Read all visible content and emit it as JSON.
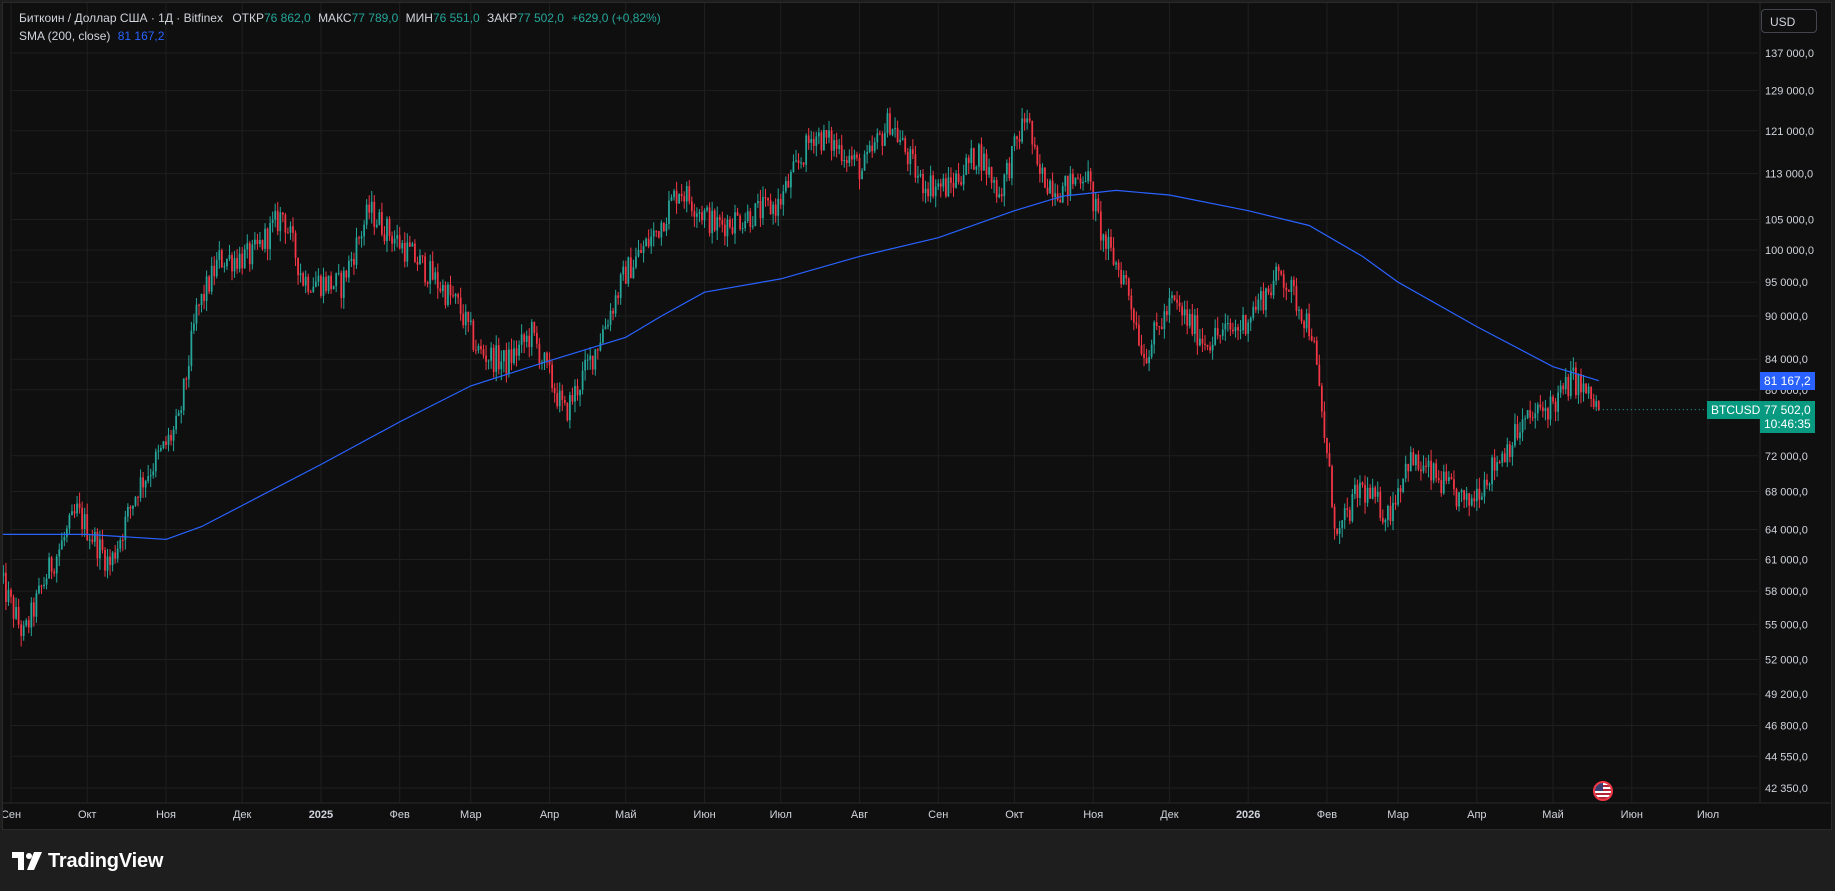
{
  "legend": {
    "symbol": "Биткоин / Доллар США · 1Д · Bitfinex",
    "open_label": "ОТКР",
    "open": "76 862,0",
    "high_label": "МАКС",
    "high": "77 789,0",
    "low_label": "МИН",
    "low": "76 551,0",
    "close_label": "ЗАКР",
    "close": "77 502,0",
    "change": "+629,0 (+0,82%)",
    "sma_label": "SMA (200, close)",
    "sma_value": "81 167,2"
  },
  "currency_button": "USD",
  "sma_tag": "81 167,2",
  "price_tag": {
    "symbol": "BTCUSD",
    "price": "77 502,0",
    "countdown": "10:46:35"
  },
  "branding": {
    "logo_text": "TradingView"
  },
  "colors": {
    "background": "#0f0f0f",
    "up": "#26a69a",
    "down": "#f23645",
    "sma": "#2962ff",
    "grid": "#1f1f1f"
  },
  "chart_data": {
    "type": "candlestick",
    "price_scale": "log",
    "y_ticks": [
      {
        "value": 137000,
        "label": "137 000,0"
      },
      {
        "value": 129000,
        "label": "129 000,0"
      },
      {
        "value": 121000,
        "label": "121 000,0"
      },
      {
        "value": 113000,
        "label": "113 000,0"
      },
      {
        "value": 105000,
        "label": "105 000,0"
      },
      {
        "value": 100000,
        "label": "100 000,0"
      },
      {
        "value": 95000,
        "label": "95 000,0"
      },
      {
        "value": 90000,
        "label": "90 000,0"
      },
      {
        "value": 84000,
        "label": "84 000,0"
      },
      {
        "value": 80000,
        "label": "80 000,0"
      },
      {
        "value": 72000,
        "label": "72 000,0"
      },
      {
        "value": 68000,
        "label": "68 000,0"
      },
      {
        "value": 64000,
        "label": "64 000,0"
      },
      {
        "value": 61000,
        "label": "61 000,0"
      },
      {
        "value": 58000,
        "label": "58 000,0"
      },
      {
        "value": 55000,
        "label": "55 000,0"
      },
      {
        "value": 52000,
        "label": "52 000,0"
      },
      {
        "value": 49200,
        "label": "49 200,0"
      },
      {
        "value": 46800,
        "label": "46 800,0"
      },
      {
        "value": 44550,
        "label": "44 550,0"
      },
      {
        "value": 42350,
        "label": "42 350,0"
      }
    ],
    "x_ticks": [
      {
        "label": "Сен",
        "date": "2024-09-01",
        "bold": false
      },
      {
        "label": "Окт",
        "date": "2024-10-01",
        "bold": false
      },
      {
        "label": "Ноя",
        "date": "2024-11-01",
        "bold": false
      },
      {
        "label": "Дек",
        "date": "2024-12-01",
        "bold": false
      },
      {
        "label": "2025",
        "date": "2025-01-01",
        "bold": true
      },
      {
        "label": "Фев",
        "date": "2025-02-01",
        "bold": false
      },
      {
        "label": "Мар",
        "date": "2025-03-01",
        "bold": false
      },
      {
        "label": "Апр",
        "date": "2025-04-01",
        "bold": false
      },
      {
        "label": "Май",
        "date": "2025-05-01",
        "bold": false
      },
      {
        "label": "Июн",
        "date": "2025-06-01",
        "bold": false
      },
      {
        "label": "Июл",
        "date": "2025-07-01",
        "bold": false
      },
      {
        "label": "Авг",
        "date": "2025-08-01",
        "bold": false
      },
      {
        "label": "Сен",
        "date": "2025-09-01",
        "bold": false
      },
      {
        "label": "Окт",
        "date": "2025-10-01",
        "bold": false
      },
      {
        "label": "Ноя",
        "date": "2025-11-01",
        "bold": false
      },
      {
        "label": "Дек",
        "date": "2025-12-01",
        "bold": false
      },
      {
        "label": "2026",
        "date": "2026-01-01",
        "bold": true
      },
      {
        "label": "Фев",
        "date": "2026-02-01",
        "bold": false
      },
      {
        "label": "Мар",
        "date": "2026-03-01",
        "bold": false
      },
      {
        "label": "Апр",
        "date": "2026-04-01",
        "bold": false
      },
      {
        "label": "Май",
        "date": "2026-05-01",
        "bold": false
      },
      {
        "label": "Июн",
        "date": "2026-06-01",
        "bold": false
      },
      {
        "label": "Июл",
        "date": "2026-07-01",
        "bold": false
      }
    ],
    "close_series": [
      {
        "date": "2024-08-28",
        "close": 59000
      },
      {
        "date": "2024-09-06",
        "close": 54000
      },
      {
        "date": "2024-09-15",
        "close": 59500
      },
      {
        "date": "2024-09-27",
        "close": 65800
      },
      {
        "date": "2024-10-10",
        "close": 60500
      },
      {
        "date": "2024-10-21",
        "close": 68500
      },
      {
        "date": "2024-10-30",
        "close": 72300
      },
      {
        "date": "2024-11-06",
        "close": 75800
      },
      {
        "date": "2024-11-13",
        "close": 90500
      },
      {
        "date": "2024-11-22",
        "close": 98500
      },
      {
        "date": "2024-12-05",
        "close": 99000
      },
      {
        "date": "2024-12-17",
        "close": 106000
      },
      {
        "date": "2024-12-25",
        "close": 95500
      },
      {
        "date": "2025-01-09",
        "close": 94500
      },
      {
        "date": "2025-01-20",
        "close": 106500
      },
      {
        "date": "2025-01-31",
        "close": 101500
      },
      {
        "date": "2025-02-10",
        "close": 97500
      },
      {
        "date": "2025-02-24",
        "close": 91500
      },
      {
        "date": "2025-03-04",
        "close": 85000
      },
      {
        "date": "2025-03-15",
        "close": 83500
      },
      {
        "date": "2025-03-25",
        "close": 87500
      },
      {
        "date": "2025-04-07",
        "close": 77000
      },
      {
        "date": "2025-04-18",
        "close": 84500
      },
      {
        "date": "2025-05-01",
        "close": 96500
      },
      {
        "date": "2025-05-13",
        "close": 103000
      },
      {
        "date": "2025-05-22",
        "close": 110500
      },
      {
        "date": "2025-06-05",
        "close": 104000
      },
      {
        "date": "2025-06-17",
        "close": 105500
      },
      {
        "date": "2025-06-30",
        "close": 107500
      },
      {
        "date": "2025-07-14",
        "close": 120500
      },
      {
        "date": "2025-07-25",
        "close": 117500
      },
      {
        "date": "2025-08-02",
        "close": 113500
      },
      {
        "date": "2025-08-13",
        "close": 123000
      },
      {
        "date": "2025-08-25",
        "close": 111500
      },
      {
        "date": "2025-09-05",
        "close": 110500
      },
      {
        "date": "2025-09-17",
        "close": 117000
      },
      {
        "date": "2025-09-25",
        "close": 109500
      },
      {
        "date": "2025-10-06",
        "close": 124500
      },
      {
        "date": "2025-10-10",
        "close": 113000
      },
      {
        "date": "2025-10-20",
        "close": 110000
      },
      {
        "date": "2025-10-29",
        "close": 113500
      },
      {
        "date": "2025-11-05",
        "close": 101500
      },
      {
        "date": "2025-11-14",
        "close": 95000
      },
      {
        "date": "2025-11-21",
        "close": 84500
      },
      {
        "date": "2025-12-02",
        "close": 92000
      },
      {
        "date": "2025-12-15",
        "close": 86500
      },
      {
        "date": "2025-12-29",
        "close": 88500
      },
      {
        "date": "2026-01-14",
        "close": 96500
      },
      {
        "date": "2026-01-26",
        "close": 88000
      },
      {
        "date": "2026-02-05",
        "close": 63000
      },
      {
        "date": "2026-02-14",
        "close": 68500
      },
      {
        "date": "2026-02-25",
        "close": 65500
      },
      {
        "date": "2026-03-05",
        "close": 71500
      },
      {
        "date": "2026-03-16",
        "close": 69500
      },
      {
        "date": "2026-03-28",
        "close": 66500
      },
      {
        "date": "2026-04-08",
        "close": 71000
      },
      {
        "date": "2026-04-20",
        "close": 76000
      },
      {
        "date": "2026-05-02",
        "close": 78500
      },
      {
        "date": "2026-05-09",
        "close": 81500
      },
      {
        "date": "2026-05-19",
        "close": 77502
      }
    ],
    "sma_series": [
      {
        "date": "2024-08-28",
        "value": 63500
      },
      {
        "date": "2024-10-01",
        "value": 63500
      },
      {
        "date": "2024-11-01",
        "value": 63000
      },
      {
        "date": "2024-11-15",
        "value": 64300
      },
      {
        "date": "2024-12-01",
        "value": 66500
      },
      {
        "date": "2025-01-01",
        "value": 71000
      },
      {
        "date": "2025-02-01",
        "value": 76000
      },
      {
        "date": "2025-03-01",
        "value": 80500
      },
      {
        "date": "2025-04-01",
        "value": 83800
      },
      {
        "date": "2025-05-01",
        "value": 87000
      },
      {
        "date": "2025-05-15",
        "value": 90000
      },
      {
        "date": "2025-06-01",
        "value": 93500
      },
      {
        "date": "2025-07-01",
        "value": 95500
      },
      {
        "date": "2025-08-01",
        "value": 99000
      },
      {
        "date": "2025-09-01",
        "value": 102000
      },
      {
        "date": "2025-10-01",
        "value": 106500
      },
      {
        "date": "2025-10-20",
        "value": 109000
      },
      {
        "date": "2025-11-10",
        "value": 110000
      },
      {
        "date": "2025-12-01",
        "value": 109200
      },
      {
        "date": "2026-01-01",
        "value": 106500
      },
      {
        "date": "2026-01-25",
        "value": 104000
      },
      {
        "date": "2026-02-15",
        "value": 99000
      },
      {
        "date": "2026-03-01",
        "value": 95000
      },
      {
        "date": "2026-04-01",
        "value": 88500
      },
      {
        "date": "2026-05-01",
        "value": 83000
      },
      {
        "date": "2026-05-19",
        "value": 81167
      }
    ]
  }
}
